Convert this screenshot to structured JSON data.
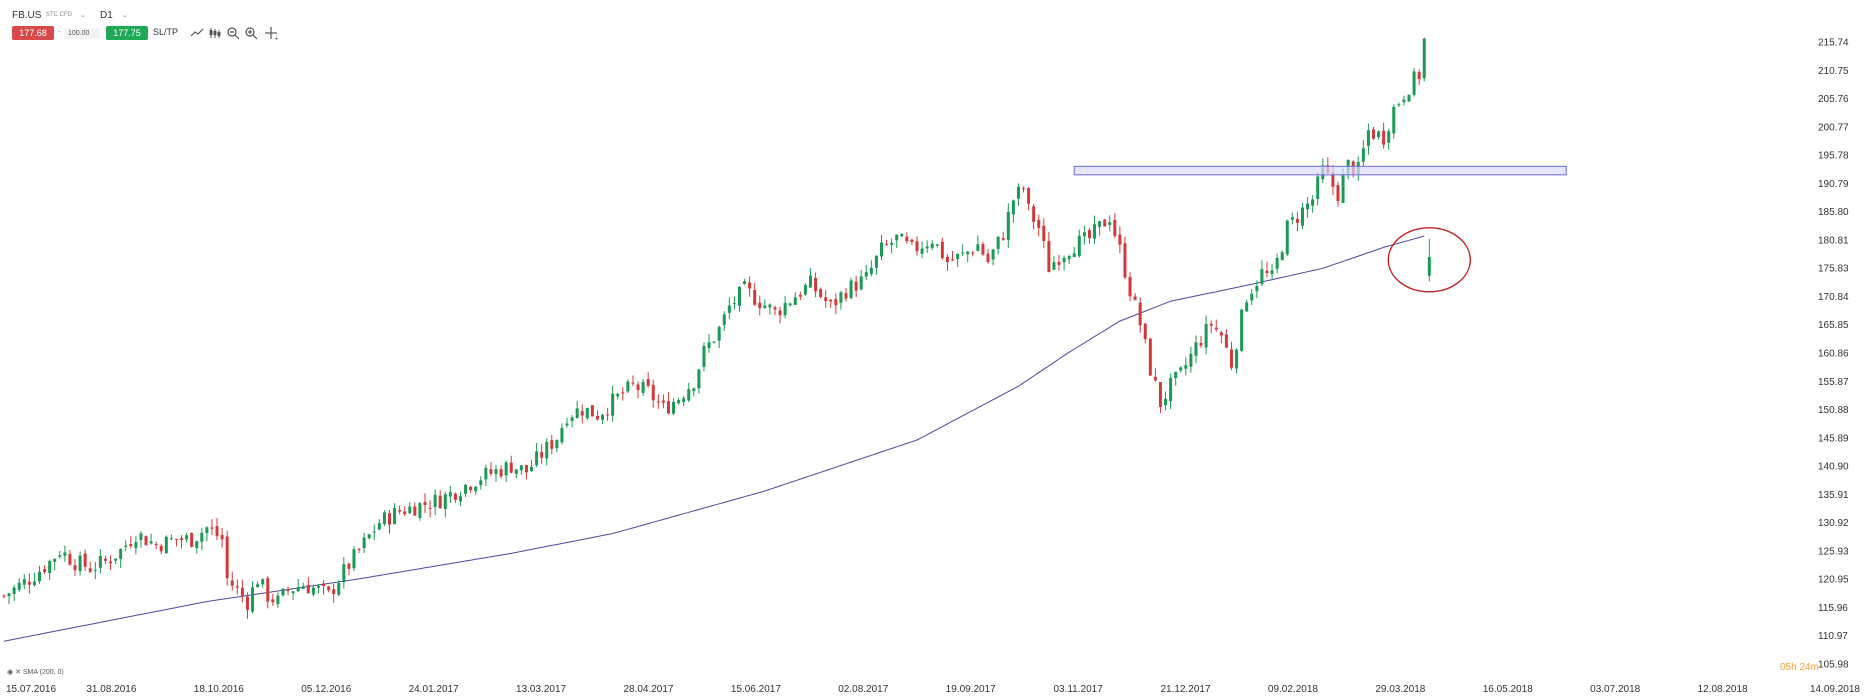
{
  "toolbar": {
    "symbol": "FB.US",
    "symbol_type": "STC CFD",
    "timeframe": "D1",
    "sell_price": "177.68",
    "volume": "100.00",
    "buy_price": "177.75",
    "sltp_label": "SL/TP",
    "icons": [
      "line-chart-icon",
      "candles-icon",
      "zoom-out-icon",
      "zoom-in-icon",
      "crosshair-icon"
    ]
  },
  "timer": "05h 24m",
  "indicator_label": "SMA (200, 0)",
  "colors": {
    "bull": "#1a9a56",
    "bear": "#d23a3a",
    "sma": "#4a4aa0",
    "zone_fill": "#dcdcff",
    "zone_stroke": "#6a6ad8",
    "circle": "#c81e1e",
    "sell": "#d84a4a",
    "buy": "#1fa855"
  },
  "chart_data": {
    "type": "candlestick",
    "x_tick_labels": [
      "15.07.2016",
      "31.08.2016",
      "18.10.2016",
      "05.12.2016",
      "24.01.2017",
      "13.03.2017",
      "28.04.2017",
      "15.06.2017",
      "02.08.2017",
      "19.09.2017",
      "03.11.2017",
      "21.12.2017",
      "09.02.2018",
      "29.03.2018",
      "16.05.2018",
      "03.07.2018",
      "12.08.2018",
      "14.09.2018"
    ],
    "y_tick_labels": [
      "215.74",
      "210.75",
      "205.76",
      "200.77",
      "195.78",
      "190.79",
      "185.80",
      "180.81",
      "175.83",
      "170.84",
      "165.85",
      "160.86",
      "155.87",
      "150.88",
      "145.89",
      "140.90",
      "135.91",
      "130.92",
      "125.93",
      "120.95",
      "115.96",
      "110.97",
      "105.98"
    ],
    "ylim": [
      105.98,
      215.74
    ],
    "close_path": [
      [
        0,
        118
      ],
      [
        5,
        121
      ],
      [
        9,
        124
      ],
      [
        11,
        126
      ],
      [
        14,
        124
      ],
      [
        17,
        123
      ],
      [
        20,
        124
      ],
      [
        23,
        126
      ],
      [
        26,
        129
      ],
      [
        30,
        127
      ],
      [
        34,
        128
      ],
      [
        37,
        128
      ],
      [
        40,
        130
      ],
      [
        43,
        128
      ],
      [
        44,
        121
      ],
      [
        46,
        119
      ],
      [
        48,
        117
      ],
      [
        50,
        121
      ],
      [
        52,
        118
      ],
      [
        54,
        117
      ],
      [
        56,
        119
      ],
      [
        59,
        120
      ],
      [
        62,
        119
      ],
      [
        64,
        118
      ],
      [
        66,
        121
      ],
      [
        70,
        126
      ],
      [
        74,
        131
      ],
      [
        78,
        133
      ],
      [
        82,
        134
      ],
      [
        86,
        135
      ],
      [
        90,
        137
      ],
      [
        94,
        139
      ],
      [
        97,
        140
      ],
      [
        100,
        141
      ],
      [
        103,
        140
      ],
      [
        106,
        143
      ],
      [
        109,
        146
      ],
      [
        111,
        150
      ],
      [
        114,
        151
      ],
      [
        117,
        150
      ],
      [
        121,
        153
      ],
      [
        124,
        155
      ],
      [
        127,
        154
      ],
      [
        130,
        151
      ],
      [
        133,
        153
      ],
      [
        136,
        156
      ],
      [
        138,
        161
      ],
      [
        141,
        165
      ],
      [
        143,
        169
      ],
      [
        146,
        172
      ],
      [
        149,
        170
      ],
      [
        152,
        168
      ],
      [
        156,
        171
      ],
      [
        159,
        173
      ],
      [
        161,
        171
      ],
      [
        163,
        169
      ],
      [
        166,
        172
      ],
      [
        170,
        174
      ],
      [
        173,
        179
      ],
      [
        176,
        181
      ],
      [
        179,
        179
      ],
      [
        183,
        181
      ],
      [
        186,
        177
      ],
      [
        189,
        178
      ],
      [
        192,
        180
      ],
      [
        194,
        177
      ],
      [
        197,
        182
      ],
      [
        199,
        188
      ],
      [
        201,
        190
      ],
      [
        202,
        186
      ],
      [
        204,
        183
      ],
      [
        206,
        176
      ],
      [
        208,
        178
      ],
      [
        211,
        180
      ],
      [
        214,
        181
      ],
      [
        216,
        183
      ],
      [
        218,
        185
      ],
      [
        220,
        179
      ],
      [
        222,
        172
      ],
      [
        224,
        166
      ],
      [
        226,
        158
      ],
      [
        228,
        152
      ],
      [
        230,
        155
      ],
      [
        232,
        157
      ],
      [
        235,
        162
      ],
      [
        238,
        166
      ],
      [
        240,
        164
      ],
      [
        242,
        159
      ],
      [
        245,
        171
      ],
      [
        248,
        175
      ],
      [
        250,
        174
      ],
      [
        253,
        183
      ],
      [
        256,
        186
      ],
      [
        258,
        188
      ],
      [
        260,
        193
      ],
      [
        263,
        189
      ],
      [
        265,
        194
      ],
      [
        267,
        193
      ],
      [
        269,
        200
      ],
      [
        272,
        199
      ],
      [
        274,
        204
      ],
      [
        277,
        208
      ],
      [
        279,
        210
      ],
      [
        280,
        216
      ]
    ],
    "sma_label": "SMA (200, 0)",
    "sma_series": [
      [
        0,
        110.0
      ],
      [
        40,
        117.0
      ],
      [
        70,
        121.0
      ],
      [
        100,
        125.5
      ],
      [
        120,
        129.0
      ],
      [
        150,
        136.5
      ],
      [
        180,
        145.5
      ],
      [
        200,
        155.0
      ],
      [
        210,
        161.0
      ],
      [
        220,
        166.5
      ],
      [
        230,
        170.0
      ],
      [
        245,
        172.8
      ],
      [
        260,
        175.8
      ],
      [
        272,
        179.5
      ],
      [
        280,
        181.5
      ]
    ],
    "annotations": [
      {
        "type": "horizontal-zone",
        "y_from": 192.3,
        "y_to": 193.8,
        "x_from": 211,
        "x_to": 308
      },
      {
        "type": "circle",
        "x": 281,
        "y": 177.3,
        "label": ""
      }
    ],
    "grid": false,
    "legend": "none"
  }
}
